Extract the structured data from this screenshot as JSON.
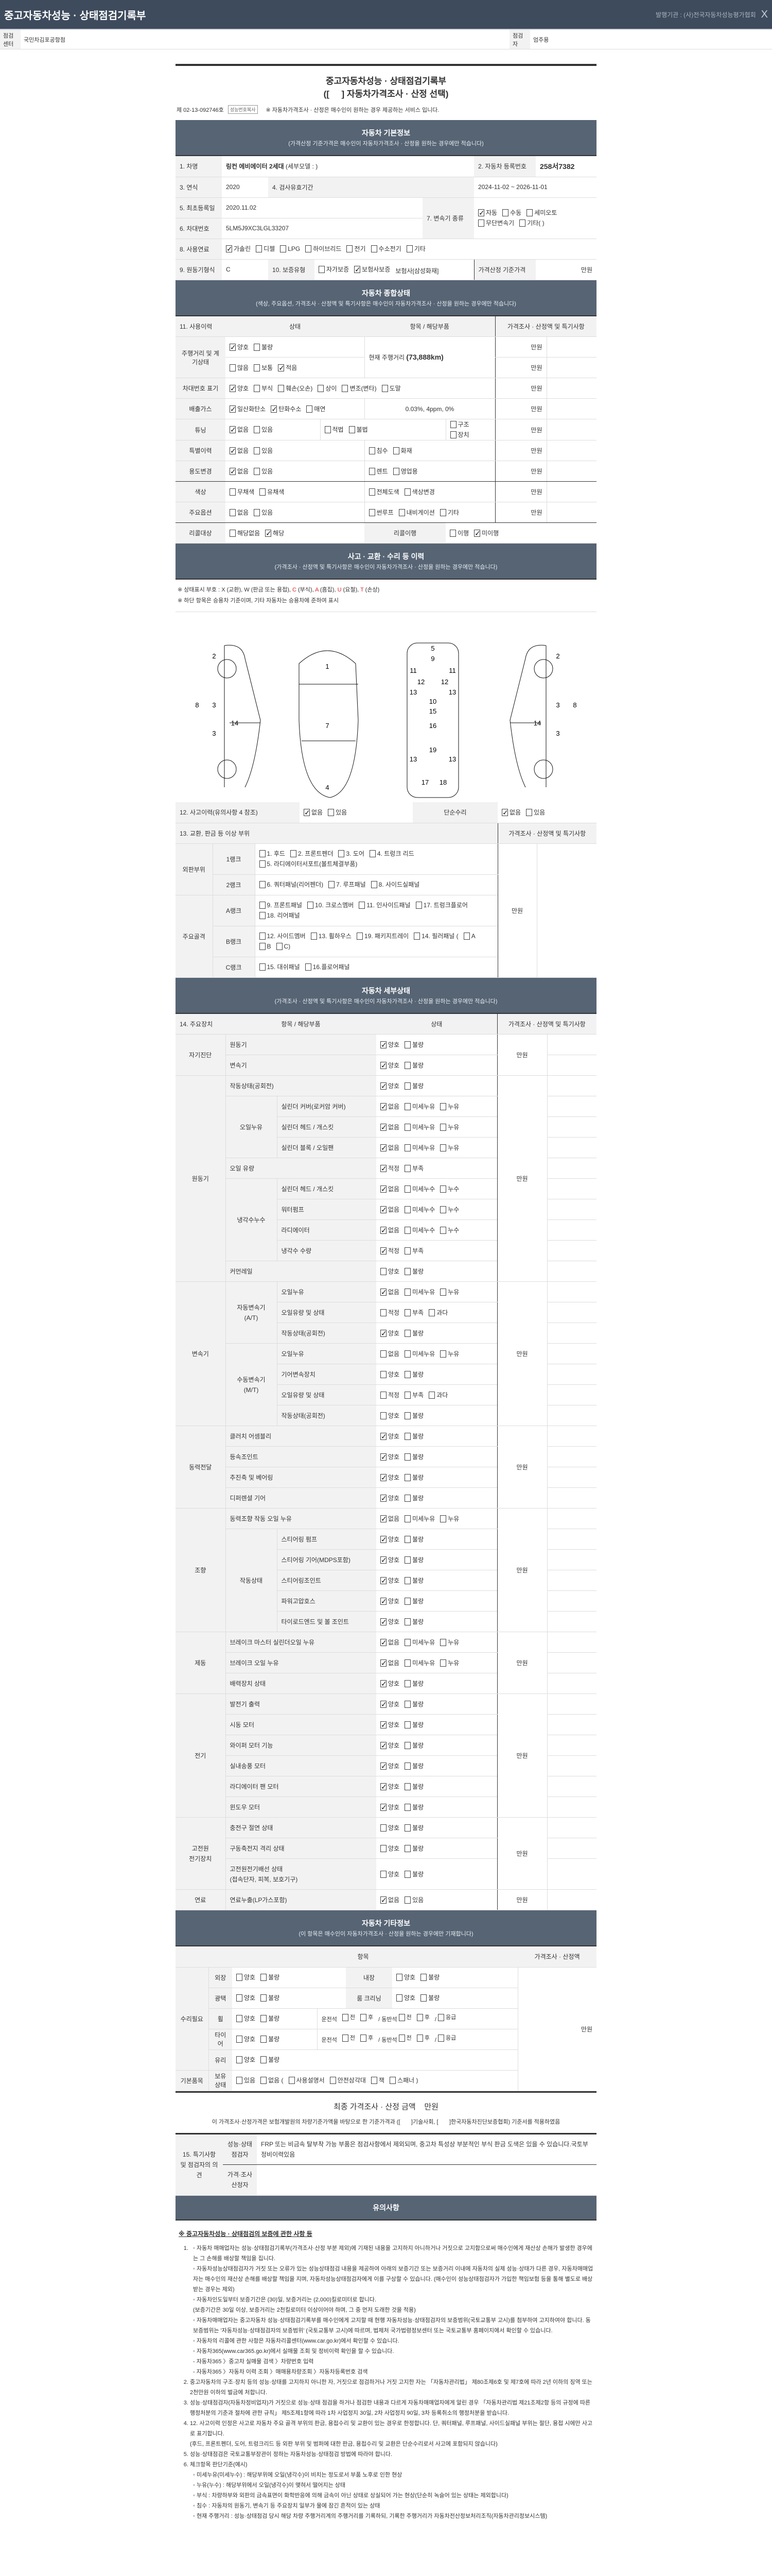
{
  "app": {
    "title": "중고자동차성능 · 상태점검기록부",
    "issuer": "발행기관 : (사)전국자동차성능평가협회",
    "close": "X"
  },
  "info": {
    "center_label": "점검센터",
    "center": "국민차김포공항점",
    "inspector_label": "점검자",
    "inspector": "엄주용"
  },
  "doc": {
    "title1": "중고자동차성능 · 상태점검기록부",
    "title2": "([     ] 자동차가격조사 · 산정 선택)",
    "number": "제 02-13-092746호",
    "copy_button": "성능번호복사",
    "notice": "※ 자동차가격조사 · 산정은 매수인이 원하는 경우 제공하는 서비스 입니다."
  },
  "basic": {
    "title": "자동차 기본정보",
    "subtitle": "(가격산정 기준가격은 매수인이 자동차가격조사 · 산정을 원하는 경우에만 적습니다)",
    "l1": "1. 차명",
    "name": "링컨 에비에이터 2세대",
    "model": "(세부모델 : )",
    "l2": "2. 자동차 등록번호",
    "plate": "258서7382",
    "l3": "3. 연식",
    "year": "2020",
    "l4": "4. 검사유효기간",
    "valid": "2024-11-02 ~ 2026-11-01",
    "l5": "5. 최초등록일",
    "first_reg": "2020.11.02",
    "l6": "6. 차대번호",
    "vin": "5LM5J9XC3LGL33207",
    "l7": "7. 변속기 종류",
    "trans": {
      "opts": [
        "자동",
        "수동",
        "세미오토",
        "무단변속기",
        "기타( )"
      ],
      "checked": [
        0
      ]
    },
    "l8": "8. 사용연료",
    "fuel": {
      "opts": [
        "가솔린",
        "디젤",
        "LPG",
        "하이브리드",
        "전기",
        "수소전기",
        "기타"
      ],
      "checked": [
        0
      ]
    },
    "l9": "9. 원동기형식",
    "engine": "C",
    "l10": "10. 보증유형",
    "warranty": {
      "opts": [
        "자가보증",
        "보험사보증"
      ],
      "checked": [
        1
      ]
    },
    "insurer": "보험사[삼성화재]",
    "base_price_label": "가격산정 기준가격",
    "base_price_unit": "만원"
  },
  "general": {
    "title": "자동차 종합상태",
    "subtitle": "(색상, 주요옵션, 가격조사 · 산정액 및 특기사항은 매수인이 자동차가격조사 · 산정을 원하는 경우에만 적습니다)",
    "headers": [
      "11. 사용이력",
      "상태",
      "항목 / 해당부품",
      "가격조사 · 산정액 및 특기사항"
    ],
    "unit": "만원",
    "rows": [
      {
        "label": "주행거리 및 계기상태",
        "a": {
          "opts": [
            "양호",
            "불량"
          ],
          "checked": [
            0
          ]
        },
        "b": {
          "opts": [
            "많음",
            "보통",
            "적음"
          ],
          "checked": [
            2
          ]
        },
        "item": "현재 주행거리",
        "item_value": "(73,888km)"
      },
      {
        "label": "차대번호 표기",
        "a": {
          "opts": [
            "양호",
            "부식",
            "훼손(오손)",
            "상이",
            "변조(변타)",
            "도말"
          ],
          "checked": [
            0
          ]
        }
      },
      {
        "label": "배출가스",
        "a": {
          "opts": [
            "일산화탄소",
            "탄화수소",
            "매연"
          ],
          "checked": [
            0,
            1
          ]
        },
        "item": "0.03%,     4ppm,     0%"
      },
      {
        "label": "튜닝",
        "a": {
          "opts": [
            "없음",
            "있음"
          ],
          "checked": [
            0
          ]
        },
        "b": {
          "opts": [
            "적법",
            "불법"
          ],
          "checked": []
        },
        "c": {
          "opts": [
            "구조",
            "장치"
          ],
          "checked": []
        }
      },
      {
        "label": "특별이력",
        "a": {
          "opts": [
            "없음",
            "있음"
          ],
          "checked": [
            0
          ]
        },
        "b": {
          "opts": [
            "침수",
            "화재"
          ],
          "checked": []
        }
      },
      {
        "label": "용도변경",
        "a": {
          "opts": [
            "없음",
            "있음"
          ],
          "checked": [
            0
          ]
        },
        "b": {
          "opts": [
            "렌트",
            "영업용"
          ],
          "checked": []
        }
      },
      {
        "label": "색상",
        "a": {
          "opts": [
            "무채색",
            "유채색"
          ],
          "checked": []
        },
        "b": {
          "opts": [
            "전체도색",
            "색상변경"
          ],
          "checked": []
        }
      },
      {
        "label": "주요옵션",
        "a": {
          "opts": [
            "없음",
            "있음"
          ],
          "checked": []
        },
        "b": {
          "opts": [
            "썬루프",
            "내비게이션",
            "기타"
          ],
          "checked": []
        }
      },
      {
        "label": "리콜대상",
        "a": {
          "opts": [
            "해당없음",
            "해당"
          ],
          "checked": [
            1
          ]
        },
        "label2": "리콜이행",
        "b": {
          "opts": [
            "이행",
            "미이행"
          ],
          "checked": [
            1
          ]
        }
      }
    ]
  },
  "accident": {
    "title": "사고 · 교환 · 수리 등 이력",
    "subtitle": "(가격조사 · 산정액 및 특기사항은 매수인이 자동차가격조사 · 산정을 원하는 경우에만 적습니다)",
    "legend_prefix": "※ 상태표시 부호 : X (교환), W (판금 또는 용접), ",
    "legend_red": [
      {
        "code": "C",
        "text": " (부식), "
      },
      {
        "code": "A",
        "text": " (흠집), "
      },
      {
        "code": "U",
        "text": " (요철), "
      },
      {
        "code": "T",
        "text": " (손상)"
      }
    ],
    "note2": "※ 하단 항목은 승용차 기준이며, 기타 자동차는 승용차에 준하여 표시",
    "diagram_labels": {
      "left": [
        "2",
        "3",
        "3",
        "8",
        "14"
      ],
      "top": [
        "1",
        "7",
        "4"
      ],
      "under": [
        "5",
        "9",
        "11",
        "11",
        "12",
        "12",
        "13",
        "13",
        "10",
        "15",
        "16",
        "19",
        "13",
        "13",
        "17",
        "18"
      ],
      "right": [
        "2",
        "3",
        "3",
        "8",
        "14"
      ]
    },
    "l12": "12. 사고이력(유의사항 4 참조)",
    "accident_opts": {
      "opts": [
        "없음",
        "있음"
      ],
      "checked": [
        0
      ]
    },
    "l_simple": "단순수리",
    "simple_opts": {
      "opts": [
        "없음",
        "있음"
      ],
      "checked": [
        0
      ]
    },
    "l13": "13. 교환, 판금 등 이상 부위",
    "price_header": "가격조사 · 산정액 및 특기사항",
    "unit": "만원",
    "groups": [
      {
        "name": "외판부위",
        "ranks": [
          {
            "rank": "1랭크",
            "opts": [
              "1. 후드",
              "2. 프론트펜더",
              "3. 도어",
              "4. 트렁크 리드",
              "5. 라디에이터서포트(볼트체결부품)"
            ]
          },
          {
            "rank": "2랭크",
            "opts": [
              "6. 쿼터패널(리어펜더)",
              "7. 루프패널",
              "8. 사이드실패널"
            ]
          }
        ]
      },
      {
        "name": "주요골격",
        "ranks": [
          {
            "rank": "A랭크",
            "opts": [
              "9. 프론트패널",
              "10. 크로스멤버",
              "11. 인사이드패널",
              "17. 트렁크플로어",
              "18. 리어패널"
            ]
          },
          {
            "rank": "B랭크",
            "opts": [
              "12. 사이드멤버",
              "13. 휠하우스",
              "19. 패키지트레이",
              "14. 필러패널 (",
              "A",
              "B",
              "C)"
            ]
          },
          {
            "rank": "C랭크",
            "opts": [
              "15. 대쉬패널",
              "16.플로어패널"
            ]
          }
        ]
      }
    ]
  },
  "detail": {
    "title": "자동차 세부상태",
    "subtitle": "(가격조사 · 산정액 및 특기사항은 매수인이 자동차가격조사 · 산정을 원하는 경우에만 적습니다)",
    "headers": [
      "14. 주요장치",
      "항목 / 해당부품",
      "상태",
      "가격조사 · 산정액 및 특기사항"
    ],
    "unit": "만원",
    "groups": [
      {
        "name": "자기진단",
        "rows": [
          {
            "item": "원동기",
            "opts": [
              "양호",
              "불량"
            ],
            "checked": [
              0
            ]
          },
          {
            "item": "변속기",
            "opts": [
              "양호",
              "불량"
            ],
            "checked": [
              0
            ]
          }
        ]
      },
      {
        "name": "원동기",
        "rows": [
          {
            "item": "작동상태(공회전)",
            "opts": [
              "양호",
              "불량"
            ],
            "checked": [
              0
            ]
          },
          {
            "sub": "오일누유",
            "item": "실린더 커버(로커암 커버)",
            "opts": [
              "없음",
              "미세누유",
              "누유"
            ],
            "checked": [
              0
            ]
          },
          {
            "sub": "오일누유",
            "item": "실린더 헤드 / 개스킷",
            "opts": [
              "없음",
              "미세누유",
              "누유"
            ],
            "checked": [
              0
            ]
          },
          {
            "sub": "오일누유",
            "item": "실린더 블록 / 오일팬",
            "opts": [
              "없음",
              "미세누유",
              "누유"
            ],
            "checked": [
              0
            ]
          },
          {
            "item": "오일 유량",
            "opts": [
              "적정",
              "부족"
            ],
            "checked": [
              0
            ]
          },
          {
            "sub": "냉각수누수",
            "item": "실린더 헤드 / 개스킷",
            "opts": [
              "없음",
              "미세누수",
              "누수"
            ],
            "checked": [
              0
            ]
          },
          {
            "sub": "냉각수누수",
            "item": "워터펌프",
            "opts": [
              "없음",
              "미세누수",
              "누수"
            ],
            "checked": [
              0
            ]
          },
          {
            "sub": "냉각수누수",
            "item": "라디에이터",
            "opts": [
              "없음",
              "미세누수",
              "누수"
            ],
            "checked": [
              0
            ]
          },
          {
            "sub": "냉각수누수",
            "item": "냉각수 수량",
            "opts": [
              "적정",
              "부족"
            ],
            "checked": [
              0
            ]
          },
          {
            "item": "커먼레일",
            "opts": [
              "양호",
              "불량"
            ],
            "checked": []
          }
        ]
      },
      {
        "name": "변속기",
        "rows": [
          {
            "sub": "자동변속기\n(A/T)",
            "item": "오일누유",
            "opts": [
              "없음",
              "미세누유",
              "누유"
            ],
            "checked": [
              0
            ]
          },
          {
            "sub": "자동변속기\n(A/T)",
            "item": "오일유량 및 상태",
            "opts": [
              "적정",
              "부족",
              "과다"
            ],
            "checked": []
          },
          {
            "sub": "자동변속기\n(A/T)",
            "item": "작동상태(공회전)",
            "opts": [
              "양호",
              "불량"
            ],
            "checked": [
              0
            ]
          },
          {
            "sub": "수동변속기\n(M/T)",
            "item": "오일누유",
            "opts": [
              "없음",
              "미세누유",
              "누유"
            ],
            "checked": []
          },
          {
            "sub": "수동변속기\n(M/T)",
            "item": "기어변속장치",
            "opts": [
              "양호",
              "불량"
            ],
            "checked": []
          },
          {
            "sub": "수동변속기\n(M/T)",
            "item": "오일유량 및 상태",
            "opts": [
              "적정",
              "부족",
              "과다"
            ],
            "checked": []
          },
          {
            "sub": "수동변속기\n(M/T)",
            "item": "작동상태(공회전)",
            "opts": [
              "양호",
              "불량"
            ],
            "checked": []
          }
        ]
      },
      {
        "name": "동력전달",
        "rows": [
          {
            "item": "클러치 어셈블리",
            "opts": [
              "양호",
              "불량"
            ],
            "checked": [
              0
            ]
          },
          {
            "item": "등속조인트",
            "opts": [
              "양호",
              "불량"
            ],
            "checked": [
              0
            ]
          },
          {
            "item": "추진축 및 베어링",
            "opts": [
              "양호",
              "불량"
            ],
            "checked": [
              0
            ]
          },
          {
            "item": "디퍼렌셜 기어",
            "opts": [
              "양호",
              "불량"
            ],
            "checked": [
              0
            ]
          }
        ]
      },
      {
        "name": "조향",
        "rows": [
          {
            "item": "동력조향 작동 오일 누유",
            "opts": [
              "없음",
              "미세누유",
              "누유"
            ],
            "checked": [
              0
            ]
          },
          {
            "sub": "작동상태",
            "item": "스티어링 펌프",
            "opts": [
              "양호",
              "불량"
            ],
            "checked": [
              0
            ]
          },
          {
            "sub": "작동상태",
            "item": "스티어링 기어(MDPS포함)",
            "opts": [
              "양호",
              "불량"
            ],
            "checked": [
              0
            ]
          },
          {
            "sub": "작동상태",
            "item": "스티어링조인트",
            "opts": [
              "양호",
              "불량"
            ],
            "checked": [
              0
            ]
          },
          {
            "sub": "작동상태",
            "item": "파워고압호스",
            "opts": [
              "양호",
              "불량"
            ],
            "checked": [
              0
            ]
          },
          {
            "sub": "작동상태",
            "item": "타이로드엔드 및 볼 조인트",
            "opts": [
              "양호",
              "불량"
            ],
            "checked": [
              0
            ]
          }
        ]
      },
      {
        "name": "제동",
        "rows": [
          {
            "item": "브레이크 마스터 실린더오일 누유",
            "opts": [
              "없음",
              "미세누유",
              "누유"
            ],
            "checked": [
              0
            ]
          },
          {
            "item": "브레이크 오일 누유",
            "opts": [
              "없음",
              "미세누유",
              "누유"
            ],
            "checked": [
              0
            ]
          },
          {
            "item": "배력장치 상태",
            "opts": [
              "양호",
              "불량"
            ],
            "checked": [
              0
            ]
          }
        ]
      },
      {
        "name": "전기",
        "rows": [
          {
            "item": "발전기 출력",
            "opts": [
              "양호",
              "불량"
            ],
            "checked": [
              0
            ]
          },
          {
            "item": "시동 모터",
            "opts": [
              "양호",
              "불량"
            ],
            "checked": [
              0
            ]
          },
          {
            "item": "와이퍼 모터 기능",
            "opts": [
              "양호",
              "불량"
            ],
            "checked": [
              0
            ]
          },
          {
            "item": "실내송풍 모터",
            "opts": [
              "양호",
              "불량"
            ],
            "checked": [
              0
            ]
          },
          {
            "item": "라디에이터 팬 모터",
            "opts": [
              "양호",
              "불량"
            ],
            "checked": [
              0
            ]
          },
          {
            "item": "윈도우 모터",
            "opts": [
              "양호",
              "불량"
            ],
            "checked": [
              0
            ]
          }
        ]
      },
      {
        "name": "고전원\n전기장치",
        "rows": [
          {
            "item": "충전구 절연 상태",
            "opts": [
              "양호",
              "불량"
            ],
            "checked": []
          },
          {
            "item": "구동축전지 격리 상태",
            "opts": [
              "양호",
              "불량"
            ],
            "checked": []
          },
          {
            "item": "고전원전기배선 상태\n(접속단자, 피복, 보호기구)",
            "opts": [
              "양호",
              "불량"
            ],
            "checked": []
          }
        ]
      },
      {
        "name": "연료",
        "rows": [
          {
            "item": "연료누출(LP가스포함)",
            "opts": [
              "없음",
              "있음"
            ],
            "checked": [
              0
            ]
          }
        ]
      }
    ]
  },
  "other": {
    "title": "자동차 기타정보",
    "subtitle": "(이 항목은 매수인이 자동차가격조사 · 산정을 원하는 경우에만 기재합니다)",
    "h_item": "항목",
    "h_price": "가격조사 · 산정액",
    "unit": "만원",
    "repair_label": "수리필요",
    "ext": "외장",
    "int": "내장",
    "gloss": "광택",
    "room": "룸 크리닝",
    "wheel": "휠",
    "tire": "타이어",
    "glass": "유리",
    "good_bad": [
      "양호",
      "불량"
    ],
    "driver": "운전석",
    "passenger": "동반석",
    "fb": [
      "전",
      "후"
    ],
    "slash": "/",
    "emergency": "응급",
    "basic_items": "기본품목",
    "hold": "보유상태",
    "hold_opts": [
      "있음",
      "없음 (",
      "사용설명서",
      "안전삼각대",
      "잭",
      "스패너 )"
    ]
  },
  "final": {
    "label": "최종 가격조사 · 산정 금액",
    "unit": "만원",
    "statement": "이 가격조사·산정가격은 보험개발원의 차량기준가액을 바탕으로 한 기준가격과 ([       ]기술사회, [       ]한국자동차진단보증협회) 기준서를 적용하였음"
  },
  "remarks": {
    "label": "15. 특기사항 및 점검자의 의견",
    "inspector_label": "성능·상태\n점검자",
    "inspector_text": "FRP 또는 비금속 탈부착 가능 부품은 점검사항에서 제외되며, 중고차 특성상 부분적인 부식 판금 도색은 있을 수 있습니다.국토부정비이력있음",
    "appraiser_label": "가격·조사\n산정자",
    "appraiser_text": ""
  },
  "caution": {
    "title": "유의사항",
    "heading": "※ 중고자동차성능 · 상태점검의 보증에 관한 사항 등",
    "items": [
      {
        "text": "",
        "bullets": [
          "자동차 매매업자는 성능·상태점검기록부(가격조사·산정 부분 제외)에 기재된 내용을 고지하지 아니하거나 거짓으로 고지함으로써 매수인에게 재산상 손해가 발생한 경우에는 그 손해를 배상할 책임을 집니다.",
          "자동차성능상태점검자가 거짓 또는 오류가 있는 성능상태점검 내용을 제공하여 아래의 보증기간 또는 보증거리 이내에 자동차의 실제 성능·상태가 다른 경우, 자동차매매업자는 매수인의 재산상 손해를 배상할 책임을 지며, 자동차성능상태점검자에게 이를 구상할 수 있습니다. (매수인이 성능상태점검자가 가입한 책임보험 등을 통해 별도로 배상받는 경우는 제외)",
          "자동차인도일부터 보증기간은 (30)일, 보증거리는 (2,000)킬로미터로 합니다.\n(보증기간은 30일 이상, 보증거리는 2천킬로미터 이상이어야 하며, 그 중 먼저 도래한 것을 적용)",
          "자동차매매업자는 중고자동차 성능·상태점검기록부를 매수인에게 고지할 때 현행 자동차성능·상태점검자의 보증범위(국토교통부 고시)를 첨부하여 고지하여야 합니다. 동 보증범위는 '자동차성능·상태점검자의 보증범위' (국토교통부 고시)에 따르며, 법제처 국가법령정보센터 또는 국토교통부 홈페이지에서 확인할 수 있습니다.",
          "자동차의 리콜에 관한 사항은 자동차리콜센터(www.car.go.kr)에서 확인할 수 있습니다.",
          "자동차365(www.car365.go.kr)에서 실매물 조회 및 정비이력 확인을 할 수 있습니다.\n- 자동차365 〉중고차 실매물 검색 〉차량번호 입력\n- 자동차365 〉자동차 이력 조회 〉매매용차량조회 〉자동차등록번호 검색"
        ]
      },
      {
        "text": "중고자동차의 구조·장치 등의 성능·상태를 고지하지 아니한 자, 거짓으로 점검하거나 거짓 고지한 자는 「자동차관리법」 제80조제6호 및 제7호에 따라 2년 이하의 징역 또는 2천만원 이하의 벌금에 처합니다.",
        "bullets": []
      },
      {
        "text": "성능·상태점검자(자동차정비업자)가 거짓으로 성능·상태 점검을 하거나 점검한 내용과 다르게 자동차매매업자에게 알린 경우 「자동차관리법 제21조제2항 등의 규정에 따른 행정처분의 기준과 절차에 관한 규칙」 제5조제1항에 따라 1차 사업정지 30일, 2차 사업정지 90일, 3차 등록취소의 행정처분을 받습니다.",
        "bullets": []
      },
      {
        "text": "12. 사고이력 인정은 사고로 자동차 주요 골격 부위의 판금, 용접수리 및 교환이 있는 경우로 한정합니다. 단, 쿼터패널, 루프패널, 사이드실패널 부위는 절단, 용접 시에만 사고로 표기합니다.\n(후드, 프론트펜더, 도어, 트렁크리드 등 외판 부위 및 범퍼에 대한 판금, 용접수리 및 교환은 단순수리로서 사고에 포함되지 않습니다)",
        "bullets": []
      },
      {
        "text": "성능·상태점검은 국토교통부장관이 정하는 자동차성능·상태점검 방법에 따라야 합니다.",
        "bullets": []
      },
      {
        "text": "체크항목 판단기준(예시)",
        "bullets": [
          "미세누유(미세누수) : 해당부위에 오일(냉각수)이 비치는 정도로서 부품 노후로 인한 현상",
          "누유(누수) : 해당부위에서 오일(냉각수)이 맺혀서 떨어지는 상태",
          "부식 : 차량하부와 외판의 금속표면이 화학반응에 의해 금속이 아닌 상태로 상실되어 가는 현상(단순히 녹슬어 있는 상태는 제외합니다)",
          "침수 : 자동차의 원동기, 변속기 등 주요장치 일부가 물에 잠긴 흔적이 있는 상태",
          "현재 주행거리 : 성능·상태점검 당시 해당 차량 주행거리계의 주행거리를 기록하되, 기록한 주행거리가 자동차전산정보처리조직(자동차관리정보시스템)"
        ]
      }
    ]
  }
}
